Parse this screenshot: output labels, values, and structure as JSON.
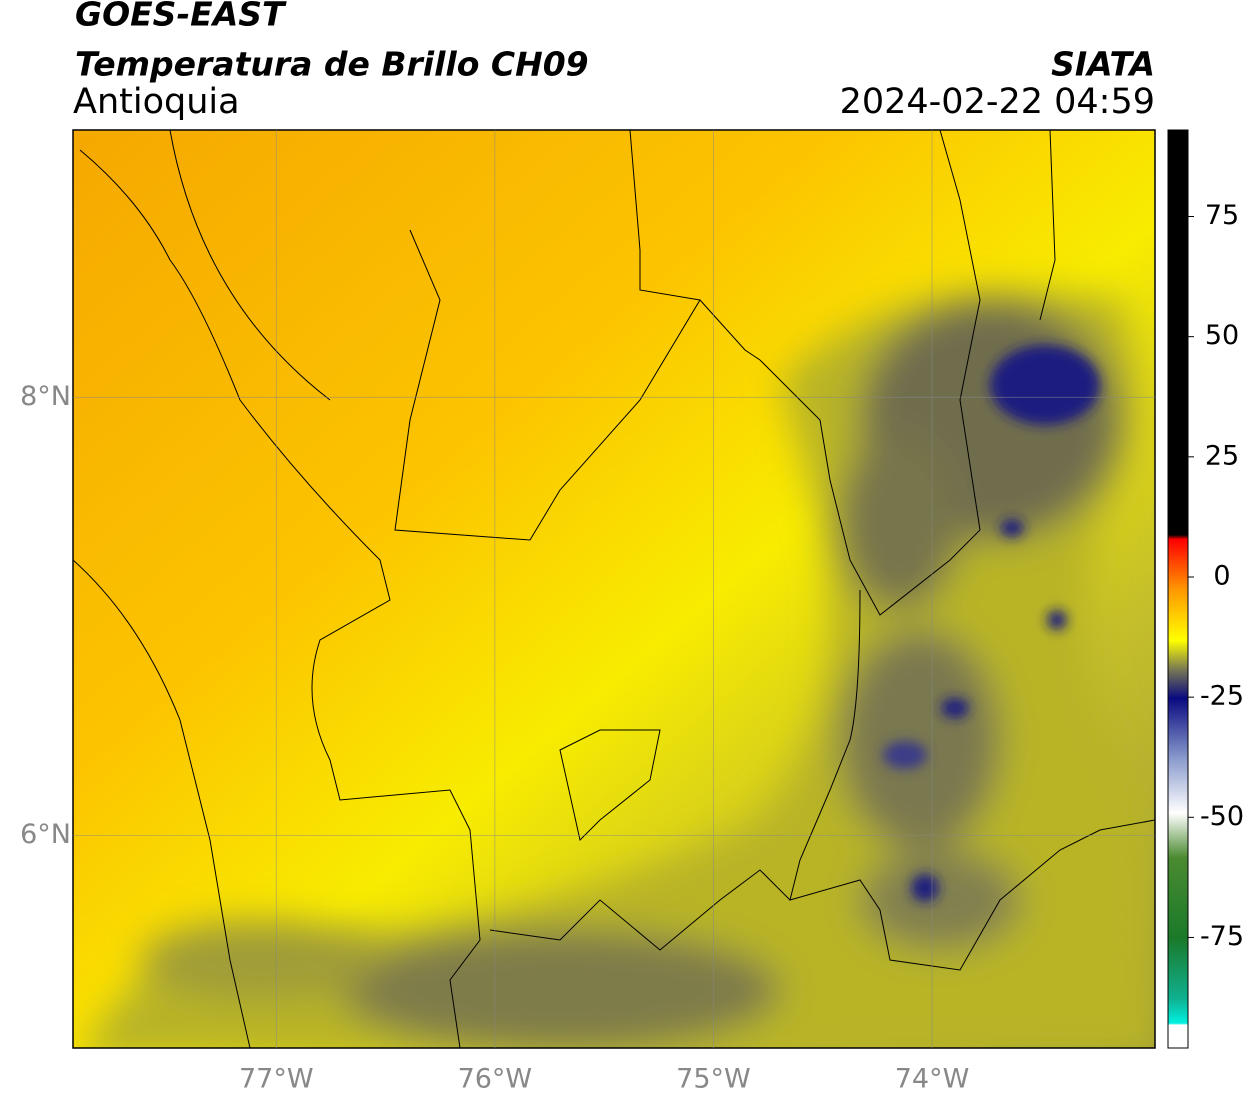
{
  "header": {
    "title": "GOES-EAST",
    "subtitle": "Temperatura de Brillo CH09",
    "region": "Antioquia",
    "source": "SIATA",
    "datetime": "2024-02-22 04:59"
  },
  "map": {
    "xlim": [
      -77.93,
      -72.98
    ],
    "ylim": [
      5.03,
      9.22
    ],
    "xticks": [
      {
        "value": -77,
        "label": "77°W"
      },
      {
        "value": -76,
        "label": "76°W"
      },
      {
        "value": -75,
        "label": "75°W"
      },
      {
        "value": -74,
        "label": "74°W"
      }
    ],
    "yticks": [
      {
        "value": 8,
        "label": "8°N"
      },
      {
        "value": 6,
        "label": "6°N"
      }
    ],
    "grid": true
  },
  "colorbar": {
    "lim": [
      -98,
      93
    ],
    "ticks": [
      75,
      50,
      25,
      0,
      -25,
      -50,
      -75
    ]
  }
}
